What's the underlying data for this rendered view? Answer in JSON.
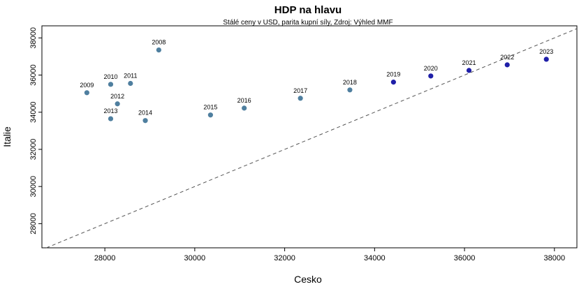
{
  "chart_data": {
    "type": "scatter",
    "title": "HDP na hlavu",
    "subtitle": "Stálé ceny v USD, parita kupní síly, Zdroj: Výhled MMF",
    "xlabel": "Cesko",
    "ylabel": "Italie",
    "xlim": [
      26600,
      38500
    ],
    "ylim": [
      26700,
      38650
    ],
    "x_ticks": [
      28000,
      30000,
      32000,
      34000,
      36000,
      38000
    ],
    "y_ticks": [
      28000,
      30000,
      32000,
      34000,
      36000,
      38000
    ],
    "reference_line": "y = x",
    "grid": false,
    "colors": {
      "historical": "#4f7f9f",
      "forecast": "#1f1fa8",
      "reference_line": "#555555"
    },
    "points": [
      {
        "label": "2008",
        "x": 29200,
        "y": 37350,
        "group": "historical"
      },
      {
        "label": "2009",
        "x": 27600,
        "y": 35050,
        "group": "historical"
      },
      {
        "label": "2010",
        "x": 28130,
        "y": 35500,
        "group": "historical"
      },
      {
        "label": "2011",
        "x": 28570,
        "y": 35550,
        "group": "historical"
      },
      {
        "label": "2012",
        "x": 28280,
        "y": 34450,
        "group": "historical"
      },
      {
        "label": "2013",
        "x": 28130,
        "y": 33650,
        "group": "historical"
      },
      {
        "label": "2014",
        "x": 28900,
        "y": 33550,
        "group": "historical"
      },
      {
        "label": "2015",
        "x": 30350,
        "y": 33850,
        "group": "historical"
      },
      {
        "label": "2016",
        "x": 31100,
        "y": 34220,
        "group": "historical"
      },
      {
        "label": "2017",
        "x": 32350,
        "y": 34750,
        "group": "historical"
      },
      {
        "label": "2018",
        "x": 33450,
        "y": 35200,
        "group": "historical"
      },
      {
        "label": "2019",
        "x": 34420,
        "y": 35620,
        "group": "forecast"
      },
      {
        "label": "2020",
        "x": 35250,
        "y": 35950,
        "group": "forecast"
      },
      {
        "label": "2021",
        "x": 36100,
        "y": 36250,
        "group": "forecast"
      },
      {
        "label": "2022",
        "x": 36950,
        "y": 36550,
        "group": "forecast"
      },
      {
        "label": "2023",
        "x": 37820,
        "y": 36850,
        "group": "forecast"
      }
    ]
  }
}
